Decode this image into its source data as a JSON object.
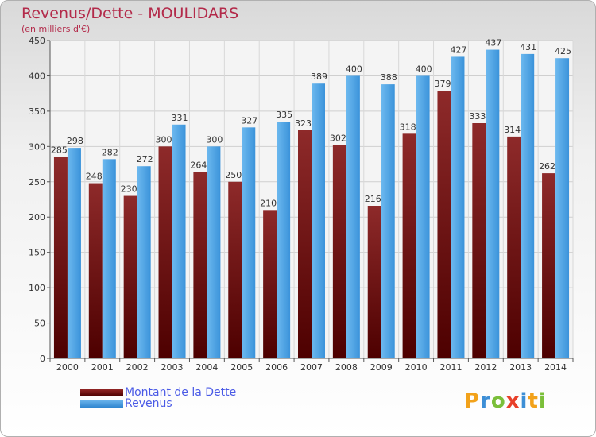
{
  "title": "Revenus/Dette - MOULIDARS",
  "subtitle": "(en milliers d'€)",
  "legend": {
    "debt": "Montant de la Dette",
    "revenue": "Revenus"
  },
  "logo": {
    "letters": [
      "P",
      "r",
      "o",
      "x",
      "i",
      "t",
      "i"
    ],
    "colors": [
      "#f2a21b",
      "#3d8fd6",
      "#7bbf3a",
      "#e8402a",
      "#3d8fd6",
      "#f2a21b",
      "#7bbf3a"
    ]
  },
  "colors": {
    "debt": "#7a1d1d",
    "revenue": "#4aa3e6",
    "title": "#b32a4a",
    "legend_text": "#4a5ae6"
  },
  "chart_data": {
    "type": "bar",
    "title": "Revenus/Dette - MOULIDARS",
    "ylabel": "(en milliers d'€)",
    "xlabel": "",
    "categories": [
      "2000",
      "2001",
      "2002",
      "2003",
      "2004",
      "2005",
      "2006",
      "2007",
      "2008",
      "2009",
      "2010",
      "2011",
      "2012",
      "2013",
      "2014"
    ],
    "series": [
      {
        "name": "Montant de la Dette",
        "values": [
          285,
          248,
          230,
          300,
          264,
          250,
          210,
          323,
          302,
          216,
          318,
          379,
          333,
          314,
          262
        ]
      },
      {
        "name": "Revenus",
        "values": [
          298,
          282,
          272,
          331,
          300,
          327,
          335,
          389,
          400,
          388,
          400,
          427,
          437,
          431,
          425
        ]
      }
    ],
    "ylim": [
      0,
      450
    ],
    "yticks": [
      0,
      50,
      100,
      150,
      200,
      250,
      300,
      350,
      400,
      450
    ],
    "grid": true,
    "legend": "bottom-left"
  }
}
